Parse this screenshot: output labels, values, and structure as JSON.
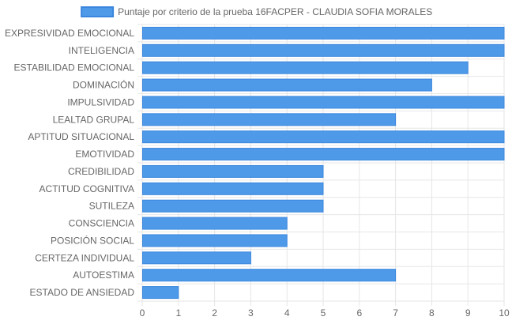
{
  "colors": {
    "bar_fill": "#4e9ae8",
    "bar_stroke": "#3a86de",
    "grid": "#e6e6e6",
    "axis_text": "#666666",
    "legend_text": "#666666"
  },
  "chart_data": {
    "type": "bar",
    "orientation": "horizontal",
    "categories": [
      "EXPRESIVIDAD EMOCIONAL",
      "INTELIGENCIA",
      "ESTABILIDAD EMOCIONAL",
      "DOMINACIÓN",
      "IMPULSIVIDAD",
      "LEALTAD GRUPAL",
      "APTITUD SITUACIONAL",
      "EMOTIVIDAD",
      "CREDIBILIDAD",
      "ACTITUD COGNITIVA",
      "SUTILEZA",
      "CONSCIENCIA",
      "POSICIÓN SOCIAL",
      "CERTEZA INDIVIDUAL",
      "AUTOESTIMA",
      "ESTADO DE ANSIEDAD"
    ],
    "series": [
      {
        "name": "Puntaje por criterio de la prueba 16FACPER - CLAUDIA SOFIA MORALES",
        "values": [
          10,
          10,
          9,
          8,
          10,
          7,
          10,
          10,
          5,
          5,
          5,
          4,
          4,
          3,
          7,
          1
        ]
      }
    ],
    "xlim": [
      0,
      10
    ],
    "xticks": [
      "0",
      "1",
      "2",
      "3",
      "4",
      "5",
      "6",
      "7",
      "8",
      "9",
      "10"
    ],
    "grid": true,
    "legend_position": "top"
  }
}
